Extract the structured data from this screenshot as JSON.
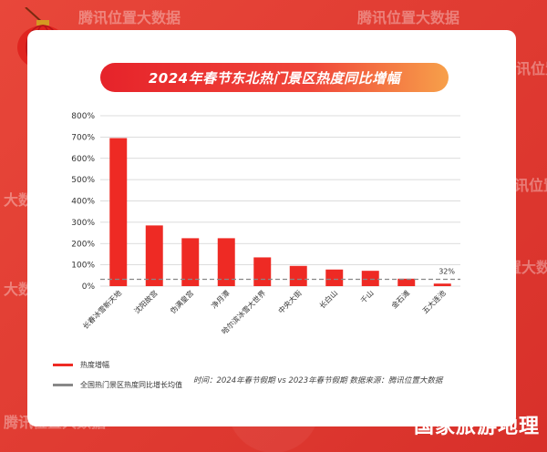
{
  "watermarks": [
    "腾讯位置大数据",
    "腾讯位置大数据",
    "腾讯位置大数据",
    "大数据",
    "腾讯位置大数据",
    "位置大数据",
    "大数据",
    "腾讯位置大数据"
  ],
  "title": "2024年春节东北热门景区热度同比增幅",
  "colors": {
    "bar": "#ee2a24",
    "avg_line": "#888888",
    "grid": "#d0d0d0",
    "accent": "#e6232a"
  },
  "legend": {
    "bar_label": "热度增幅",
    "avg_label": "全国热门景区热度同比增长均值"
  },
  "footnote": "时间：2024年春节假期 vs 2023年春节假期     数据来源：腾讯位置大数据",
  "brand": "国家旅游地理",
  "chart_data": {
    "type": "bar",
    "title": "2024年春节东北热门景区热度同比增幅",
    "categories": [
      "长春冰雪新天地",
      "沈阳故宫",
      "伪满皇宫",
      "净月潭",
      "哈尔滨冰雪大世界",
      "中央大街",
      "长白山",
      "千山",
      "金石滩",
      "五大连池"
    ],
    "series": [
      {
        "name": "热度增幅",
        "values": [
          695,
          285,
          225,
          225,
          135,
          95,
          78,
          72,
          35,
          12
        ]
      }
    ],
    "average_line": {
      "name": "全国热门景区热度同比增长均值",
      "value": 32,
      "label": "32%"
    },
    "yticks": [
      "0%",
      "100%",
      "200%",
      "300%",
      "400%",
      "500%",
      "600%",
      "700%",
      "800%"
    ],
    "ylim": [
      0,
      800
    ],
    "grid": true,
    "legend_position": "bottom-left"
  }
}
